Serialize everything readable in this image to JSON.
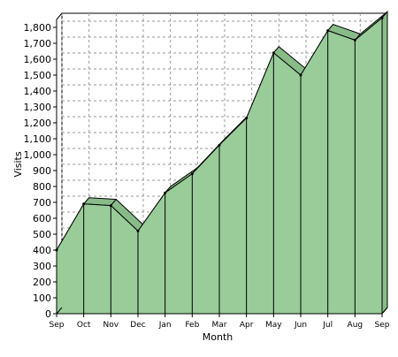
{
  "chart_data": {
    "type": "area",
    "categories": [
      "Sep",
      "Oct",
      "Nov",
      "Dec",
      "Jan",
      "Feb",
      "Mar",
      "Apr",
      "May",
      "Jun",
      "Jul",
      "Aug",
      "Sep"
    ],
    "values": [
      400,
      690,
      680,
      520,
      760,
      880,
      1060,
      1230,
      1640,
      1500,
      1780,
      1720,
      1860
    ],
    "title": "",
    "xlabel": "Month",
    "ylabel": "Visits",
    "ylim": [
      0,
      1850
    ],
    "y_ticks": [
      "0",
      "100",
      "200",
      "300",
      "400",
      "500",
      "600",
      "700",
      "800",
      "900",
      "1,000",
      "1,100",
      "1,200",
      "1,300",
      "1,400",
      "1,500",
      "1,600",
      "1,700",
      "1,800"
    ],
    "y_tick_values": [
      0,
      100,
      200,
      300,
      400,
      500,
      600,
      700,
      800,
      900,
      1000,
      1100,
      1200,
      1300,
      1400,
      1500,
      1600,
      1700,
      1800
    ],
    "grid": true,
    "three_d": true,
    "colors": {
      "fill": "#99CC99",
      "depth_fill": "#88BB88",
      "outline": "#000000",
      "grid": "#9a9a9a",
      "background": "#ffffff"
    }
  }
}
